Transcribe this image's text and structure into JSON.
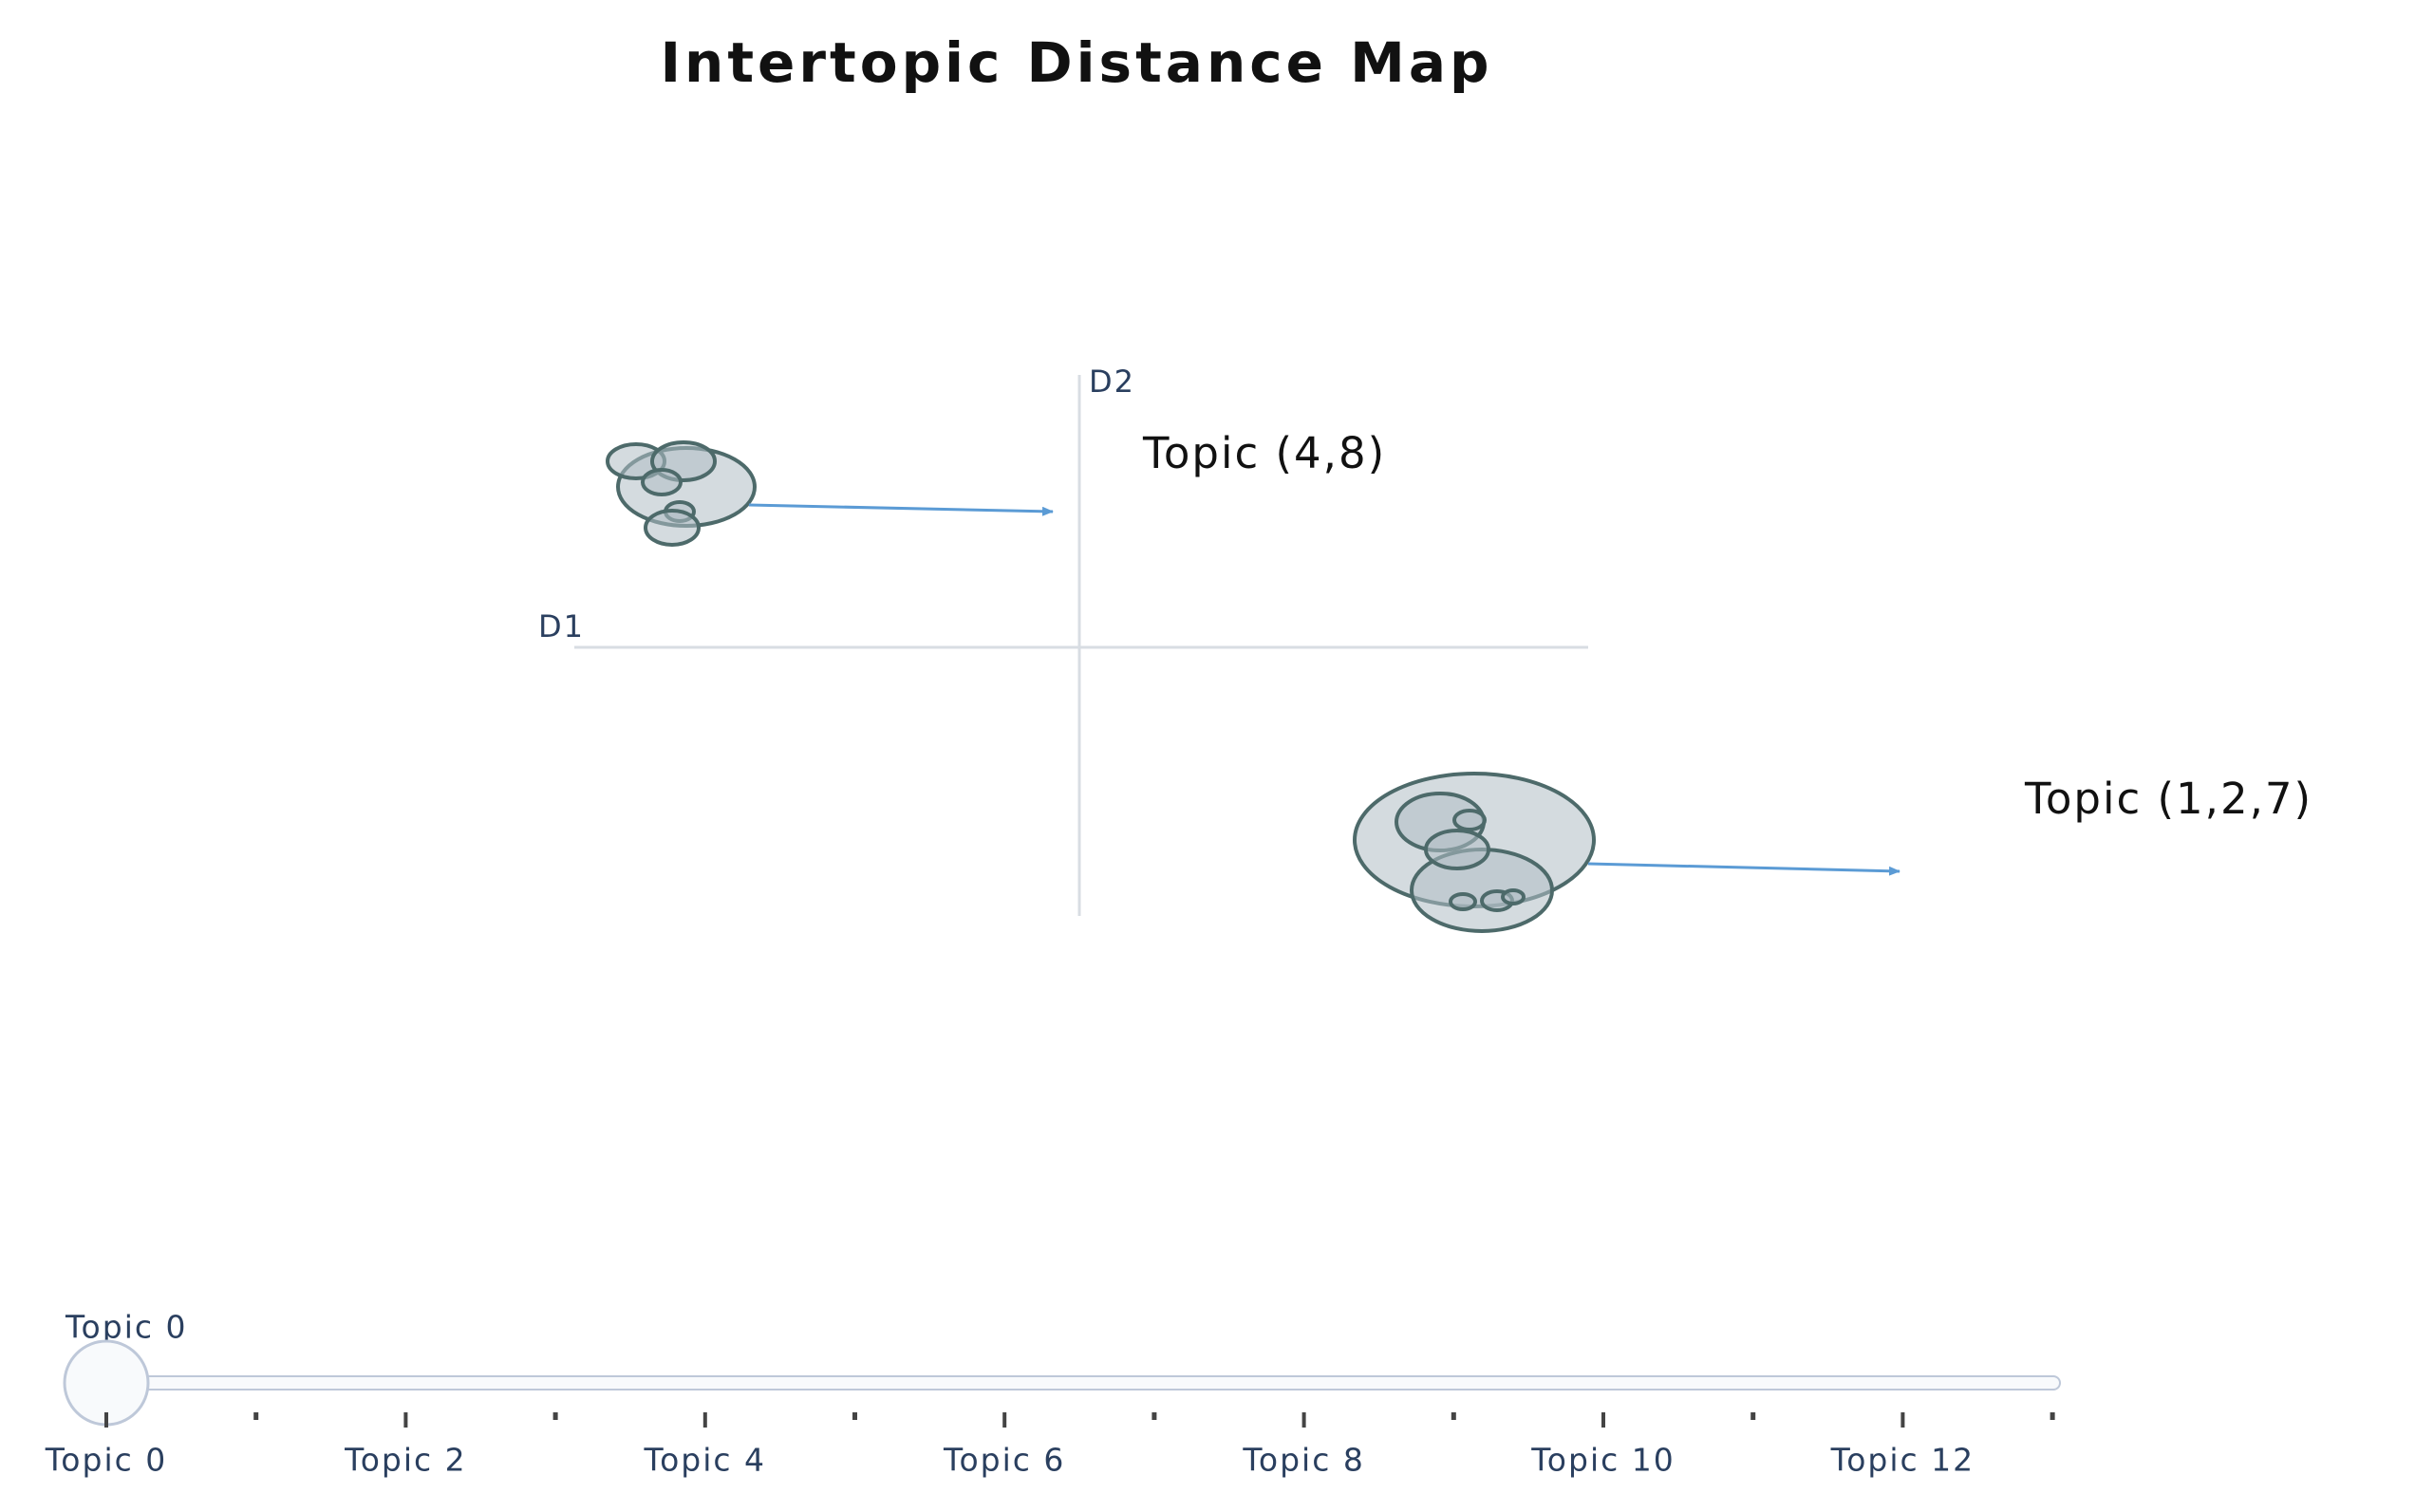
{
  "title": "Intertopic Distance Map",
  "axes": {
    "d1": "D1",
    "d2": "D2"
  },
  "annotations": [
    "Topic (4,8)",
    "Topic (1,2,7)"
  ],
  "slider": {
    "current_label": "Topic 0",
    "tick_labels": [
      "Topic 0",
      "Topic 2",
      "Topic 4",
      "Topic 6",
      "Topic 8",
      "Topic 10",
      "Topic 12"
    ]
  }
}
